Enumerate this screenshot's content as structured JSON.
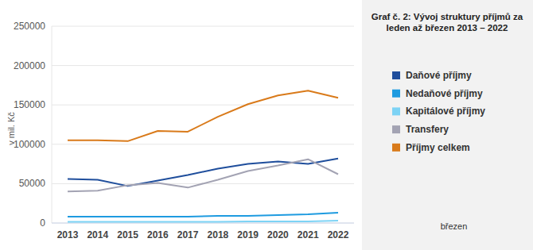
{
  "chart_data": {
    "type": "line",
    "title": "Graf č. 2: Vývoj struktury příjmů za leden až březen 2013 – 2022",
    "y_label": "v mil. Kč",
    "annotations": [
      "březen"
    ],
    "categories": [
      "2013",
      "2014",
      "2015",
      "2016",
      "2017",
      "2018",
      "2019",
      "2020",
      "2021",
      "2022"
    ],
    "series": [
      {
        "name": "Daňové příjmy",
        "color": "#1f4e9c",
        "values": [
          56000,
          55000,
          47000,
          54000,
          61000,
          69000,
          75000,
          78000,
          75000,
          82000
        ]
      },
      {
        "name": "Nedaňové příjmy",
        "color": "#1e9be0",
        "values": [
          8000,
          8000,
          8000,
          8000,
          8000,
          9000,
          9000,
          10000,
          11000,
          13000
        ]
      },
      {
        "name": "Kapitálové příjmy",
        "color": "#7dd3f5",
        "values": [
          1500,
          1500,
          1500,
          1500,
          1500,
          1500,
          2000,
          2000,
          2000,
          3000
        ]
      },
      {
        "name": "Transfery",
        "color": "#a3a3b3",
        "values": [
          40000,
          41000,
          48000,
          51000,
          45000,
          55000,
          66000,
          73000,
          81000,
          62000
        ]
      },
      {
        "name": "Příjmy celkem",
        "color": "#d97a1a",
        "values": [
          105000,
          105000,
          104000,
          117000,
          116000,
          135000,
          151000,
          162000,
          168000,
          159000
        ]
      }
    ],
    "ylim": [
      0,
      250000
    ],
    "yticks": [
      0,
      50000,
      100000,
      150000,
      200000,
      250000
    ],
    "grid": true,
    "legend": "right"
  }
}
